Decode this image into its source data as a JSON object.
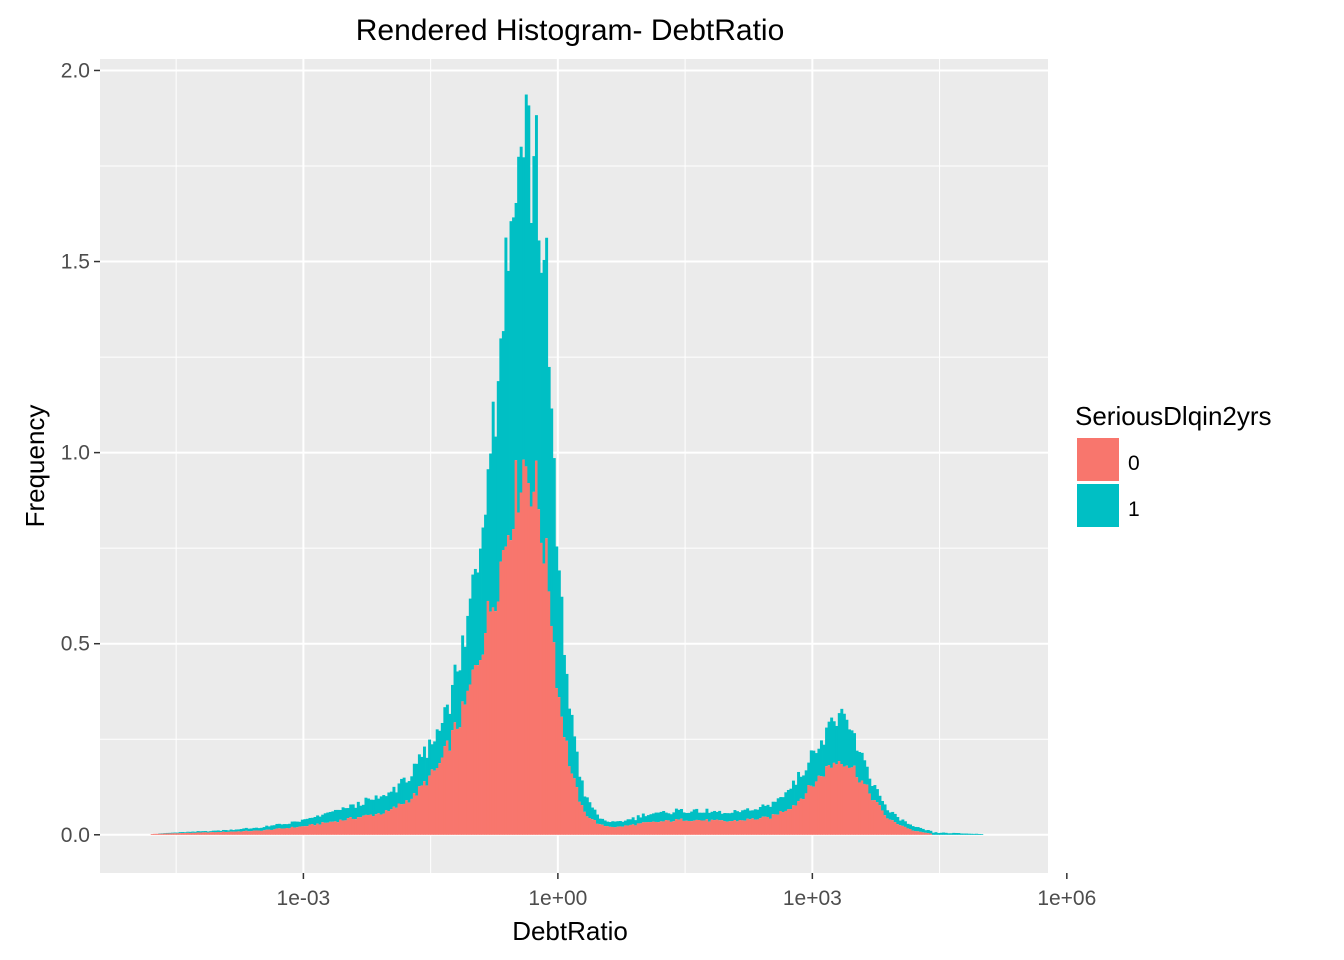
{
  "chart_data": {
    "type": "histogram",
    "title": "Rendered Histogram- DebtRatio",
    "xlabel": "DebtRatio",
    "ylabel": "Frequency",
    "x_scale": "log10",
    "xlim": [
      4e-06,
      600000.0
    ],
    "ylim": [
      -0.1,
      2.03
    ],
    "position": "stack",
    "grid": true,
    "x_ticks": [
      {
        "value": 0.001,
        "label": "1e-03"
      },
      {
        "value": 1,
        "label": "1e+00"
      },
      {
        "value": 1000,
        "label": "1e+03"
      },
      {
        "value": 1000000,
        "label": "1e+06"
      }
    ],
    "y_ticks": [
      {
        "value": 0.0,
        "label": "0.0"
      },
      {
        "value": 0.5,
        "label": "0.5"
      },
      {
        "value": 1.0,
        "label": "1.0"
      },
      {
        "value": 1.5,
        "label": "1.5"
      },
      {
        "value": 2.0,
        "label": "2.0"
      }
    ],
    "legend": {
      "title": "SeriousDlqin2yrs",
      "placement": "right",
      "items": [
        {
          "label": "0",
          "color": "#F8766D"
        },
        {
          "label": "1",
          "color": "#00BFC4"
        }
      ]
    },
    "series": [
      {
        "name": "0",
        "color": "#F8766D",
        "log10_x": [
          -4.8,
          -4.5,
          -4.0,
          -3.5,
          -3.0,
          -2.5,
          -2.0,
          -1.7,
          -1.4,
          -1.1,
          -0.9,
          -0.7,
          -0.55,
          -0.4,
          -0.25,
          -0.1,
          0.0,
          0.15,
          0.3,
          0.5,
          0.7,
          1.0,
          1.5,
          2.0,
          2.5,
          2.8,
          3.0,
          3.2,
          3.35,
          3.5,
          3.7,
          3.9,
          4.2,
          4.4
        ],
        "values": [
          0.002,
          0.004,
          0.007,
          0.011,
          0.022,
          0.04,
          0.06,
          0.1,
          0.18,
          0.33,
          0.5,
          0.68,
          0.85,
          0.98,
          0.9,
          0.65,
          0.38,
          0.17,
          0.06,
          0.025,
          0.02,
          0.03,
          0.04,
          0.035,
          0.045,
          0.08,
          0.13,
          0.18,
          0.2,
          0.17,
          0.1,
          0.04,
          0.01,
          0.003
        ]
      },
      {
        "name": "1",
        "color": "#00BFC4",
        "log10_x": [
          -4.8,
          -4.5,
          -4.0,
          -3.5,
          -3.0,
          -2.5,
          -2.0,
          -1.7,
          -1.4,
          -1.1,
          -0.9,
          -0.7,
          -0.55,
          -0.4,
          -0.25,
          -0.1,
          0.0,
          0.15,
          0.3,
          0.5,
          0.7,
          1.0,
          1.5,
          2.0,
          2.5,
          2.8,
          3.0,
          3.2,
          3.35,
          3.5,
          3.7,
          3.9,
          4.2,
          4.4,
          4.7,
          5.0
        ],
        "values": [
          0.0,
          0.002,
          0.004,
          0.008,
          0.015,
          0.03,
          0.045,
          0.065,
          0.09,
          0.16,
          0.33,
          0.58,
          0.82,
          0.9,
          0.85,
          0.6,
          0.32,
          0.14,
          0.05,
          0.015,
          0.012,
          0.02,
          0.025,
          0.02,
          0.03,
          0.06,
          0.08,
          0.11,
          0.12,
          0.08,
          0.04,
          0.02,
          0.01,
          0.006,
          0.004,
          0.002
        ]
      }
    ]
  }
}
